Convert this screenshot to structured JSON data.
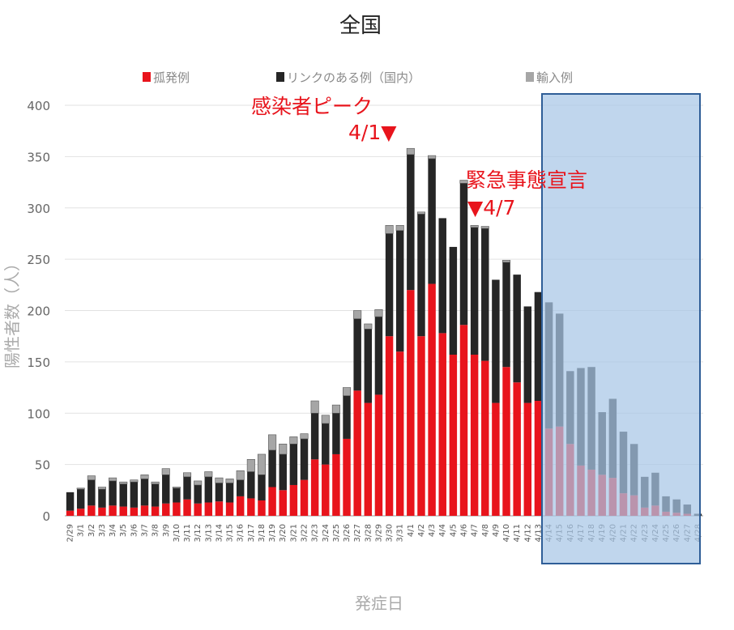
{
  "chart_data": {
    "type": "bar",
    "stacked": true,
    "title": "全国",
    "xlabel": "発症日",
    "ylabel": "陽性者数（人）",
    "ylim": [
      0,
      400
    ],
    "yticks": [
      0,
      50,
      100,
      150,
      200,
      250,
      300,
      350,
      400
    ],
    "grid": true,
    "legend_position": "top",
    "categories": [
      "2/29",
      "3/1",
      "3/2",
      "3/3",
      "3/4",
      "3/5",
      "3/6",
      "3/7",
      "3/8",
      "3/9",
      "3/10",
      "3/11",
      "3/12",
      "3/13",
      "3/14",
      "3/15",
      "3/16",
      "3/17",
      "3/18",
      "3/19",
      "3/20",
      "3/21",
      "3/22",
      "3/23",
      "3/24",
      "3/25",
      "3/26",
      "3/27",
      "3/28",
      "3/29",
      "3/30",
      "3/31",
      "4/1",
      "4/2",
      "4/3",
      "4/4",
      "4/5",
      "4/6",
      "4/7",
      "4/8",
      "4/9",
      "4/10",
      "4/11",
      "4/12",
      "4/13",
      "4/14",
      "4/15",
      "4/16",
      "4/17",
      "4/18",
      "4/19",
      "4/20",
      "4/21",
      "4/22",
      "4/23",
      "4/24",
      "4/25",
      "4/26",
      "4/27",
      "4/28"
    ],
    "series": [
      {
        "name": "孤発例",
        "color": "#e8141c",
        "values": [
          5,
          7,
          10,
          8,
          10,
          9,
          8,
          10,
          9,
          12,
          13,
          16,
          12,
          13,
          14,
          13,
          19,
          17,
          15,
          28,
          25,
          30,
          35,
          55,
          50,
          60,
          75,
          122,
          110,
          118,
          175,
          160,
          220,
          175,
          226,
          178,
          157,
          186,
          157,
          151,
          110,
          145,
          130,
          110,
          112,
          85,
          87,
          70,
          49,
          45,
          40,
          37,
          22,
          20,
          8,
          10,
          4,
          3,
          2,
          0
        ]
      },
      {
        "name": "リンクのある例（国内）",
        "color": "#262626",
        "values": [
          18,
          19,
          25,
          18,
          24,
          22,
          25,
          26,
          22,
          28,
          14,
          22,
          18,
          25,
          18,
          19,
          16,
          26,
          25,
          36,
          35,
          40,
          40,
          45,
          40,
          40,
          42,
          70,
          72,
          76,
          100,
          118,
          132,
          119,
          122,
          112,
          105,
          138,
          124,
          129,
          120,
          102,
          105,
          94,
          106,
          123,
          110,
          71,
          95,
          100,
          61,
          77,
          60,
          50,
          30,
          32,
          15,
          13,
          9,
          2
        ],
        "alpha_from_index": 45
      },
      {
        "name": "輸入例",
        "color": "#a6a6a6",
        "values": [
          0,
          1,
          4,
          2,
          3,
          2,
          2,
          4,
          2,
          6,
          1,
          4,
          4,
          5,
          5,
          4,
          9,
          12,
          20,
          15,
          10,
          7,
          5,
          12,
          8,
          8,
          8,
          8,
          5,
          7,
          8,
          5,
          6,
          2,
          3,
          0,
          0,
          3,
          2,
          2,
          0,
          2,
          0,
          0,
          0,
          0,
          0,
          0,
          0,
          0,
          0,
          0,
          0,
          0,
          0,
          0,
          0,
          0,
          0,
          0
        ]
      }
    ],
    "annotations": [
      {
        "text": "感染者ピーク",
        "color": "#e8141c"
      },
      {
        "text": "4/1▼",
        "color": "#e8141c"
      },
      {
        "text": "緊急事態宣言",
        "color": "#e8141c"
      },
      {
        "text": "▼4/7",
        "color": "#e8141c"
      }
    ],
    "highlight": {
      "from": "4/14",
      "to": "4/28",
      "fill": "#a7c6e6",
      "stroke": "#2f5e97"
    }
  }
}
